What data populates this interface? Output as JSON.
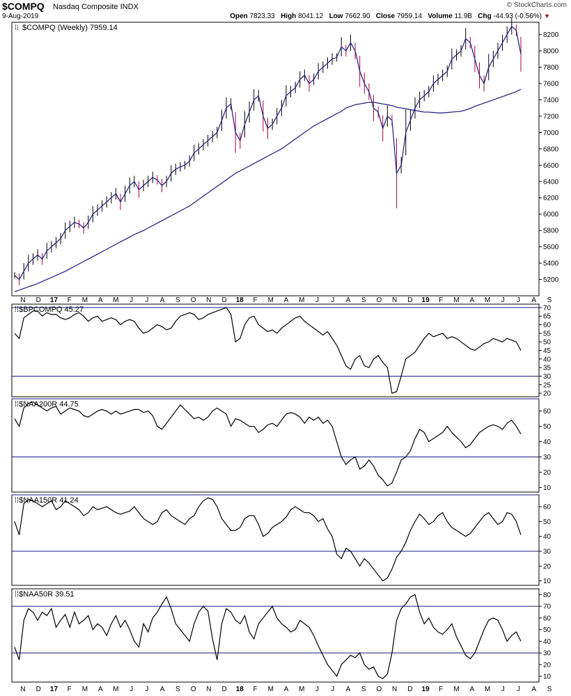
{
  "header": {
    "symbol": "$COMPQ",
    "name": "Nasdaq Composite INDX",
    "date": "9-Aug-2019",
    "brand": "© StockCharts.com",
    "open_label": "Open",
    "open": "7823.33",
    "high_label": "High",
    "high": "8041.12",
    "low_label": "Low",
    "low": "7662.90",
    "close_label": "Close",
    "close": "7959.14",
    "volume_label": "Volume",
    "volume": "11.9B",
    "chg_label": "Chg",
    "chg": "-44.93 (-0.56%)"
  },
  "x_axis_labels": [
    "N",
    "D",
    "17",
    "F",
    "M",
    "A",
    "M",
    "J",
    "J",
    "A",
    "S",
    "O",
    "N",
    "D",
    "18",
    "F",
    "M",
    "A",
    "M",
    "J",
    "J",
    "A",
    "S",
    "O",
    "N",
    "D",
    "19",
    "F",
    "M",
    "A",
    "M",
    "J",
    "J",
    "A",
    "S"
  ],
  "colors": {
    "price_line": "#1a1a80",
    "down_bar": "#b0003a",
    "up_bar": "#000000",
    "ma_line": "#1a1a80",
    "ref_line": "#1a1a80",
    "indicator": "#000000"
  },
  "chart_data": [
    {
      "type": "line",
      "legend": "$COMPQ (Weekly) 7959.14",
      "ylim": [
        5000,
        8350
      ],
      "yticks": [
        5200,
        5400,
        5600,
        5800,
        6000,
        6200,
        6400,
        6600,
        6800,
        7000,
        7200,
        7400,
        7600,
        7800,
        8000,
        8200
      ],
      "series": [
        {
          "values": [
            5250,
            5200,
            5300,
            5400,
            5450,
            5500,
            5450,
            5550,
            5600,
            5650,
            5700,
            5800,
            5850,
            5900,
            5880,
            5830,
            5900,
            6000,
            6050,
            6100,
            6150,
            6200,
            6250,
            6150,
            6250,
            6350,
            6400,
            6300,
            6350,
            6400,
            6450,
            6420,
            6350,
            6400,
            6500,
            6550,
            6580,
            6600,
            6650,
            6750,
            6800,
            6850,
            6900,
            6950,
            7000,
            7150,
            7300,
            7350,
            7000,
            6900,
            7100,
            7250,
            7400,
            7450,
            7200,
            7050,
            7100,
            7200,
            7300,
            7450,
            7500,
            7550,
            7650,
            7700,
            7600,
            7650,
            7750,
            7800,
            7850,
            7900,
            7920,
            8050,
            8000,
            8100,
            8000,
            7750,
            7600,
            7500,
            7300,
            7250,
            7050,
            7200,
            7150,
            6500,
            6600,
            7000,
            7150,
            7300,
            7400,
            7450,
            7500,
            7600,
            7650,
            7700,
            7750,
            7900,
            7950,
            8000,
            8150,
            8100,
            7900,
            7700,
            7600,
            7800,
            7900,
            8000,
            8100,
            8200,
            8300,
            8250,
            7959
          ]
        },
        {
          "values": [
            5050,
            5070,
            5090,
            5110,
            5130,
            5150,
            5175,
            5200,
            5225,
            5250,
            5275,
            5300,
            5330,
            5360,
            5390,
            5420,
            5450,
            5480,
            5510,
            5540,
            5570,
            5600,
            5630,
            5660,
            5690,
            5720,
            5750,
            5775,
            5800,
            5830,
            5860,
            5890,
            5920,
            5950,
            5980,
            6010,
            6040,
            6070,
            6100,
            6140,
            6180,
            6220,
            6260,
            6300,
            6340,
            6380,
            6420,
            6460,
            6500,
            6530,
            6560,
            6590,
            6620,
            6650,
            6680,
            6710,
            6740,
            6770,
            6800,
            6840,
            6880,
            6920,
            6960,
            7000,
            7040,
            7080,
            7110,
            7140,
            7170,
            7200,
            7230,
            7260,
            7300,
            7320,
            7340,
            7350,
            7360,
            7370,
            7370,
            7360,
            7350,
            7340,
            7330,
            7310,
            7300,
            7290,
            7280,
            7270,
            7260,
            7250,
            7250,
            7245,
            7240,
            7240,
            7245,
            7250,
            7255,
            7260,
            7275,
            7295,
            7320,
            7340,
            7360,
            7380,
            7400,
            7420,
            7440,
            7460,
            7480,
            7500,
            7530
          ]
        }
      ]
    },
    {
      "type": "line",
      "legend": "$BPCOMPQ 45.27",
      "ylim": [
        18,
        72
      ],
      "yticks": [
        20,
        25,
        30,
        35,
        40,
        45,
        50,
        55,
        60,
        65,
        70
      ],
      "hlines": [
        70,
        30
      ],
      "series": [
        {
          "values": [
            55,
            52,
            64,
            66,
            68,
            68,
            65,
            67,
            66,
            66,
            64,
            63,
            64,
            66,
            67,
            65,
            62,
            64,
            65,
            62,
            63,
            64,
            63,
            60,
            62,
            63,
            62,
            58,
            55,
            56,
            58,
            60,
            59,
            57,
            58,
            62,
            65,
            66,
            67,
            66,
            63,
            64,
            66,
            67,
            68,
            69,
            70,
            66,
            50,
            52,
            60,
            64,
            65,
            60,
            58,
            56,
            57,
            55,
            58,
            60,
            62,
            64,
            65,
            62,
            60,
            58,
            56,
            54,
            56,
            52,
            48,
            42,
            36,
            34,
            40,
            42,
            36,
            35,
            40,
            42,
            38,
            35,
            20,
            21,
            30,
            40,
            42,
            44,
            48,
            52,
            55,
            53,
            54,
            55,
            52,
            53,
            52,
            50,
            48,
            46,
            45,
            47,
            49,
            50,
            52,
            51,
            50,
            52,
            51,
            50,
            45
          ]
        }
      ]
    },
    {
      "type": "line",
      "legend": "$NAA200R 44.75",
      "ylim": [
        7,
        68
      ],
      "yticks": [
        10,
        20,
        30,
        40,
        50,
        60
      ],
      "hlines": [
        68,
        30
      ],
      "series": [
        {
          "values": [
            55,
            50,
            62,
            65,
            66,
            64,
            62,
            60,
            62,
            63,
            58,
            60,
            62,
            61,
            60,
            57,
            56,
            58,
            60,
            61,
            60,
            58,
            60,
            58,
            59,
            60,
            61,
            61,
            59,
            60,
            57,
            50,
            48,
            52,
            56,
            60,
            64,
            61,
            58,
            55,
            56,
            54,
            56,
            60,
            62,
            60,
            58,
            50,
            55,
            54,
            52,
            50,
            50,
            46,
            48,
            51,
            52,
            50,
            54,
            58,
            59,
            58,
            56,
            52,
            56,
            54,
            56,
            52,
            54,
            50,
            40,
            30,
            25,
            28,
            30,
            22,
            24,
            28,
            24,
            18,
            15,
            11,
            13,
            20,
            28,
            30,
            34,
            42,
            48,
            46,
            40,
            42,
            44,
            46,
            50,
            46,
            43,
            40,
            36,
            38,
            42,
            46,
            48,
            50,
            51,
            50,
            48,
            52,
            54,
            50,
            45
          ]
        }
      ]
    },
    {
      "type": "line",
      "legend": "$NAA150R 41.24",
      "ylim": [
        7,
        68
      ],
      "yticks": [
        10,
        20,
        30,
        40,
        50,
        60
      ],
      "hlines": [
        68,
        30
      ],
      "series": [
        {
          "values": [
            50,
            41,
            62,
            65,
            64,
            62,
            60,
            62,
            64,
            58,
            60,
            64,
            62,
            60,
            58,
            54,
            56,
            60,
            58,
            59,
            60,
            58,
            56,
            55,
            56,
            57,
            60,
            56,
            52,
            50,
            48,
            50,
            56,
            58,
            54,
            52,
            50,
            48,
            52,
            54,
            60,
            64,
            66,
            65,
            60,
            52,
            48,
            44,
            44,
            46,
            52,
            54,
            54,
            48,
            40,
            42,
            46,
            48,
            50,
            53,
            58,
            60,
            58,
            56,
            56,
            54,
            50,
            52,
            45,
            40,
            28,
            25,
            32,
            30,
            25,
            20,
            25,
            22,
            18,
            14,
            10,
            12,
            18,
            26,
            30,
            36,
            44,
            50,
            55,
            52,
            48,
            50,
            54,
            56,
            50,
            46,
            44,
            42,
            40,
            42,
            46,
            50,
            54,
            56,
            52,
            48,
            50,
            56,
            55,
            50,
            41
          ]
        }
      ]
    },
    {
      "type": "line",
      "legend": "$NAA50R 39.51",
      "ylim": [
        5,
        85
      ],
      "yticks": [
        10,
        20,
        30,
        40,
        50,
        60,
        70,
        80
      ],
      "hlines": [
        70,
        30
      ],
      "series": [
        {
          "values": [
            35,
            24,
            58,
            68,
            65,
            58,
            65,
            62,
            68,
            52,
            58,
            63,
            52,
            65,
            55,
            58,
            62,
            50,
            55,
            52,
            45,
            55,
            62,
            52,
            58,
            50,
            40,
            35,
            55,
            48,
            60,
            65,
            72,
            78,
            68,
            55,
            50,
            45,
            40,
            55,
            65,
            70,
            66,
            42,
            24,
            55,
            68,
            65,
            58,
            55,
            62,
            48,
            42,
            55,
            60,
            65,
            70,
            60,
            55,
            52,
            48,
            50,
            58,
            55,
            52,
            45,
            36,
            28,
            20,
            15,
            10,
            20,
            24,
            28,
            26,
            30,
            20,
            16,
            18,
            10,
            8,
            12,
            30,
            58,
            68,
            72,
            78,
            80,
            65,
            55,
            60,
            52,
            48,
            46,
            50,
            55,
            44,
            36,
            28,
            25,
            30,
            40,
            50,
            58,
            60,
            58,
            50,
            40,
            45,
            48,
            40
          ]
        }
      ]
    }
  ]
}
